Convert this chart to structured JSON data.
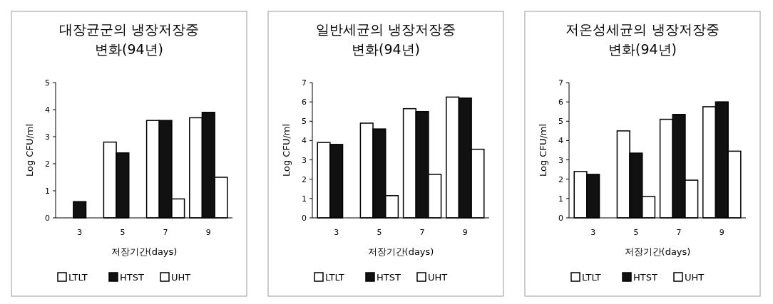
{
  "chart_data": [
    {
      "type": "bar",
      "title": "대장균군의 냉장저장중\n변화(94년)",
      "xlabel": "저장기간(days)",
      "ylabel": "Log CFU/ml",
      "categories": [
        "3",
        "5",
        "7",
        "9"
      ],
      "ylim": [
        0,
        5
      ],
      "yticks": [
        0,
        1,
        2,
        3,
        4,
        5
      ],
      "legend": "bottom",
      "grid": false,
      "series": [
        {
          "name": "LTLT",
          "color": "#ffffff",
          "values": [
            null,
            2.8,
            3.6,
            3.7
          ]
        },
        {
          "name": "HTST",
          "color": "#111111",
          "values": [
            0.6,
            2.4,
            3.6,
            3.9
          ]
        },
        {
          "name": "UHT",
          "color": "#ffffff",
          "values": [
            null,
            null,
            0.7,
            1.5
          ]
        }
      ]
    },
    {
      "type": "bar",
      "title": "일반세균의 냉장저장중\n변화(94년)",
      "xlabel": "저장기간(days)",
      "ylabel": "Log CFU/ml",
      "categories": [
        "3",
        "5",
        "7",
        "9"
      ],
      "ylim": [
        0,
        7
      ],
      "yticks": [
        0,
        1,
        2,
        3,
        4,
        5,
        6,
        7
      ],
      "legend": "bottom",
      "grid": false,
      "series": [
        {
          "name": "LTLT",
          "color": "#ffffff",
          "values": [
            3.9,
            4.9,
            5.65,
            6.25
          ]
        },
        {
          "name": "HTST",
          "color": "#111111",
          "values": [
            3.8,
            4.6,
            5.5,
            6.2
          ]
        },
        {
          "name": "UHT",
          "color": "#ffffff",
          "values": [
            null,
            1.15,
            2.25,
            3.55
          ]
        }
      ]
    },
    {
      "type": "bar",
      "title": "저온성세균의 냉장저장중\n변화(94년)",
      "xlabel": "저장기간(days)",
      "ylabel": "Log CFU/ml",
      "categories": [
        "3",
        "5",
        "7",
        "9"
      ],
      "ylim": [
        0,
        7
      ],
      "yticks": [
        0,
        1,
        2,
        3,
        4,
        5,
        6,
        7
      ],
      "legend": "bottom",
      "grid": false,
      "series": [
        {
          "name": "LTLT",
          "color": "#ffffff",
          "values": [
            2.4,
            4.5,
            5.1,
            5.75
          ]
        },
        {
          "name": "HTST",
          "color": "#111111",
          "values": [
            2.25,
            3.35,
            5.35,
            6.0
          ]
        },
        {
          "name": "UHT",
          "color": "#ffffff",
          "values": [
            null,
            1.1,
            1.95,
            3.45
          ]
        }
      ]
    }
  ]
}
